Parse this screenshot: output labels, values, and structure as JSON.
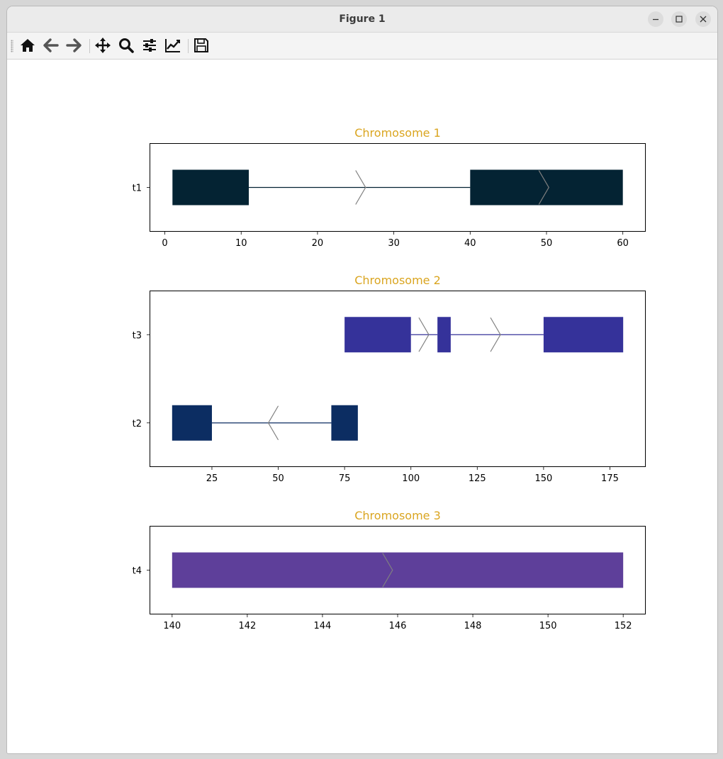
{
  "window": {
    "title": "Figure 1"
  },
  "toolbar": {
    "tools": [
      {
        "name": "home-icon"
      },
      {
        "name": "back-arrow-icon"
      },
      {
        "name": "forward-arrow-icon"
      },
      {
        "name": "pan-move-icon"
      },
      {
        "name": "zoom-magnifier-icon"
      },
      {
        "name": "configure-subplots-icon"
      },
      {
        "name": "edit-axis-curve-icon"
      },
      {
        "name": "save-floppy-icon"
      }
    ]
  },
  "colors": {
    "title": "#DAA520",
    "intron": "#808080",
    "axis": "#000000"
  },
  "chart_data": [
    {
      "type": "gene-structure",
      "title": "Chromosome 1",
      "xlim": [
        -2,
        63
      ],
      "xticks": [
        0,
        10,
        20,
        30,
        40,
        50,
        60
      ],
      "tracks": [
        {
          "label": "t1",
          "strand": "+",
          "color": "#042333",
          "exons": [
            [
              1,
              11
            ],
            [
              40,
              60
            ]
          ],
          "introns": [
            [
              11,
              40
            ]
          ],
          "arrows": [
            25,
            49
          ]
        }
      ]
    },
    {
      "type": "gene-structure",
      "title": "Chromosome 2",
      "xlim": [
        1.5,
        188.5
      ],
      "xticks": [
        25,
        50,
        75,
        100,
        125,
        150,
        175
      ],
      "tracks": [
        {
          "label": "t3",
          "strand": "+",
          "color": "#35329A",
          "exons": [
            [
              75,
              100
            ],
            [
              110,
              115
            ],
            [
              150,
              180
            ]
          ],
          "introns": [
            [
              100,
              110
            ],
            [
              115,
              150
            ]
          ],
          "arrows": [
            103,
            130
          ]
        },
        {
          "label": "t2",
          "strand": "-",
          "color": "#0C2D62",
          "exons": [
            [
              10,
              25
            ],
            [
              70,
              80
            ]
          ],
          "introns": [
            [
              25,
              70
            ]
          ],
          "arrows": [
            50
          ]
        }
      ]
    },
    {
      "type": "gene-structure",
      "title": "Chromosome 3",
      "xlim": [
        139.4,
        152.6
      ],
      "xticks": [
        140,
        142,
        144,
        146,
        148,
        150,
        152
      ],
      "tracks": [
        {
          "label": "t4",
          "strand": "+",
          "color": "#5E3F9A",
          "exons": [
            [
              140,
              152
            ]
          ],
          "introns": [],
          "arrows": [
            145.6
          ]
        }
      ]
    }
  ]
}
